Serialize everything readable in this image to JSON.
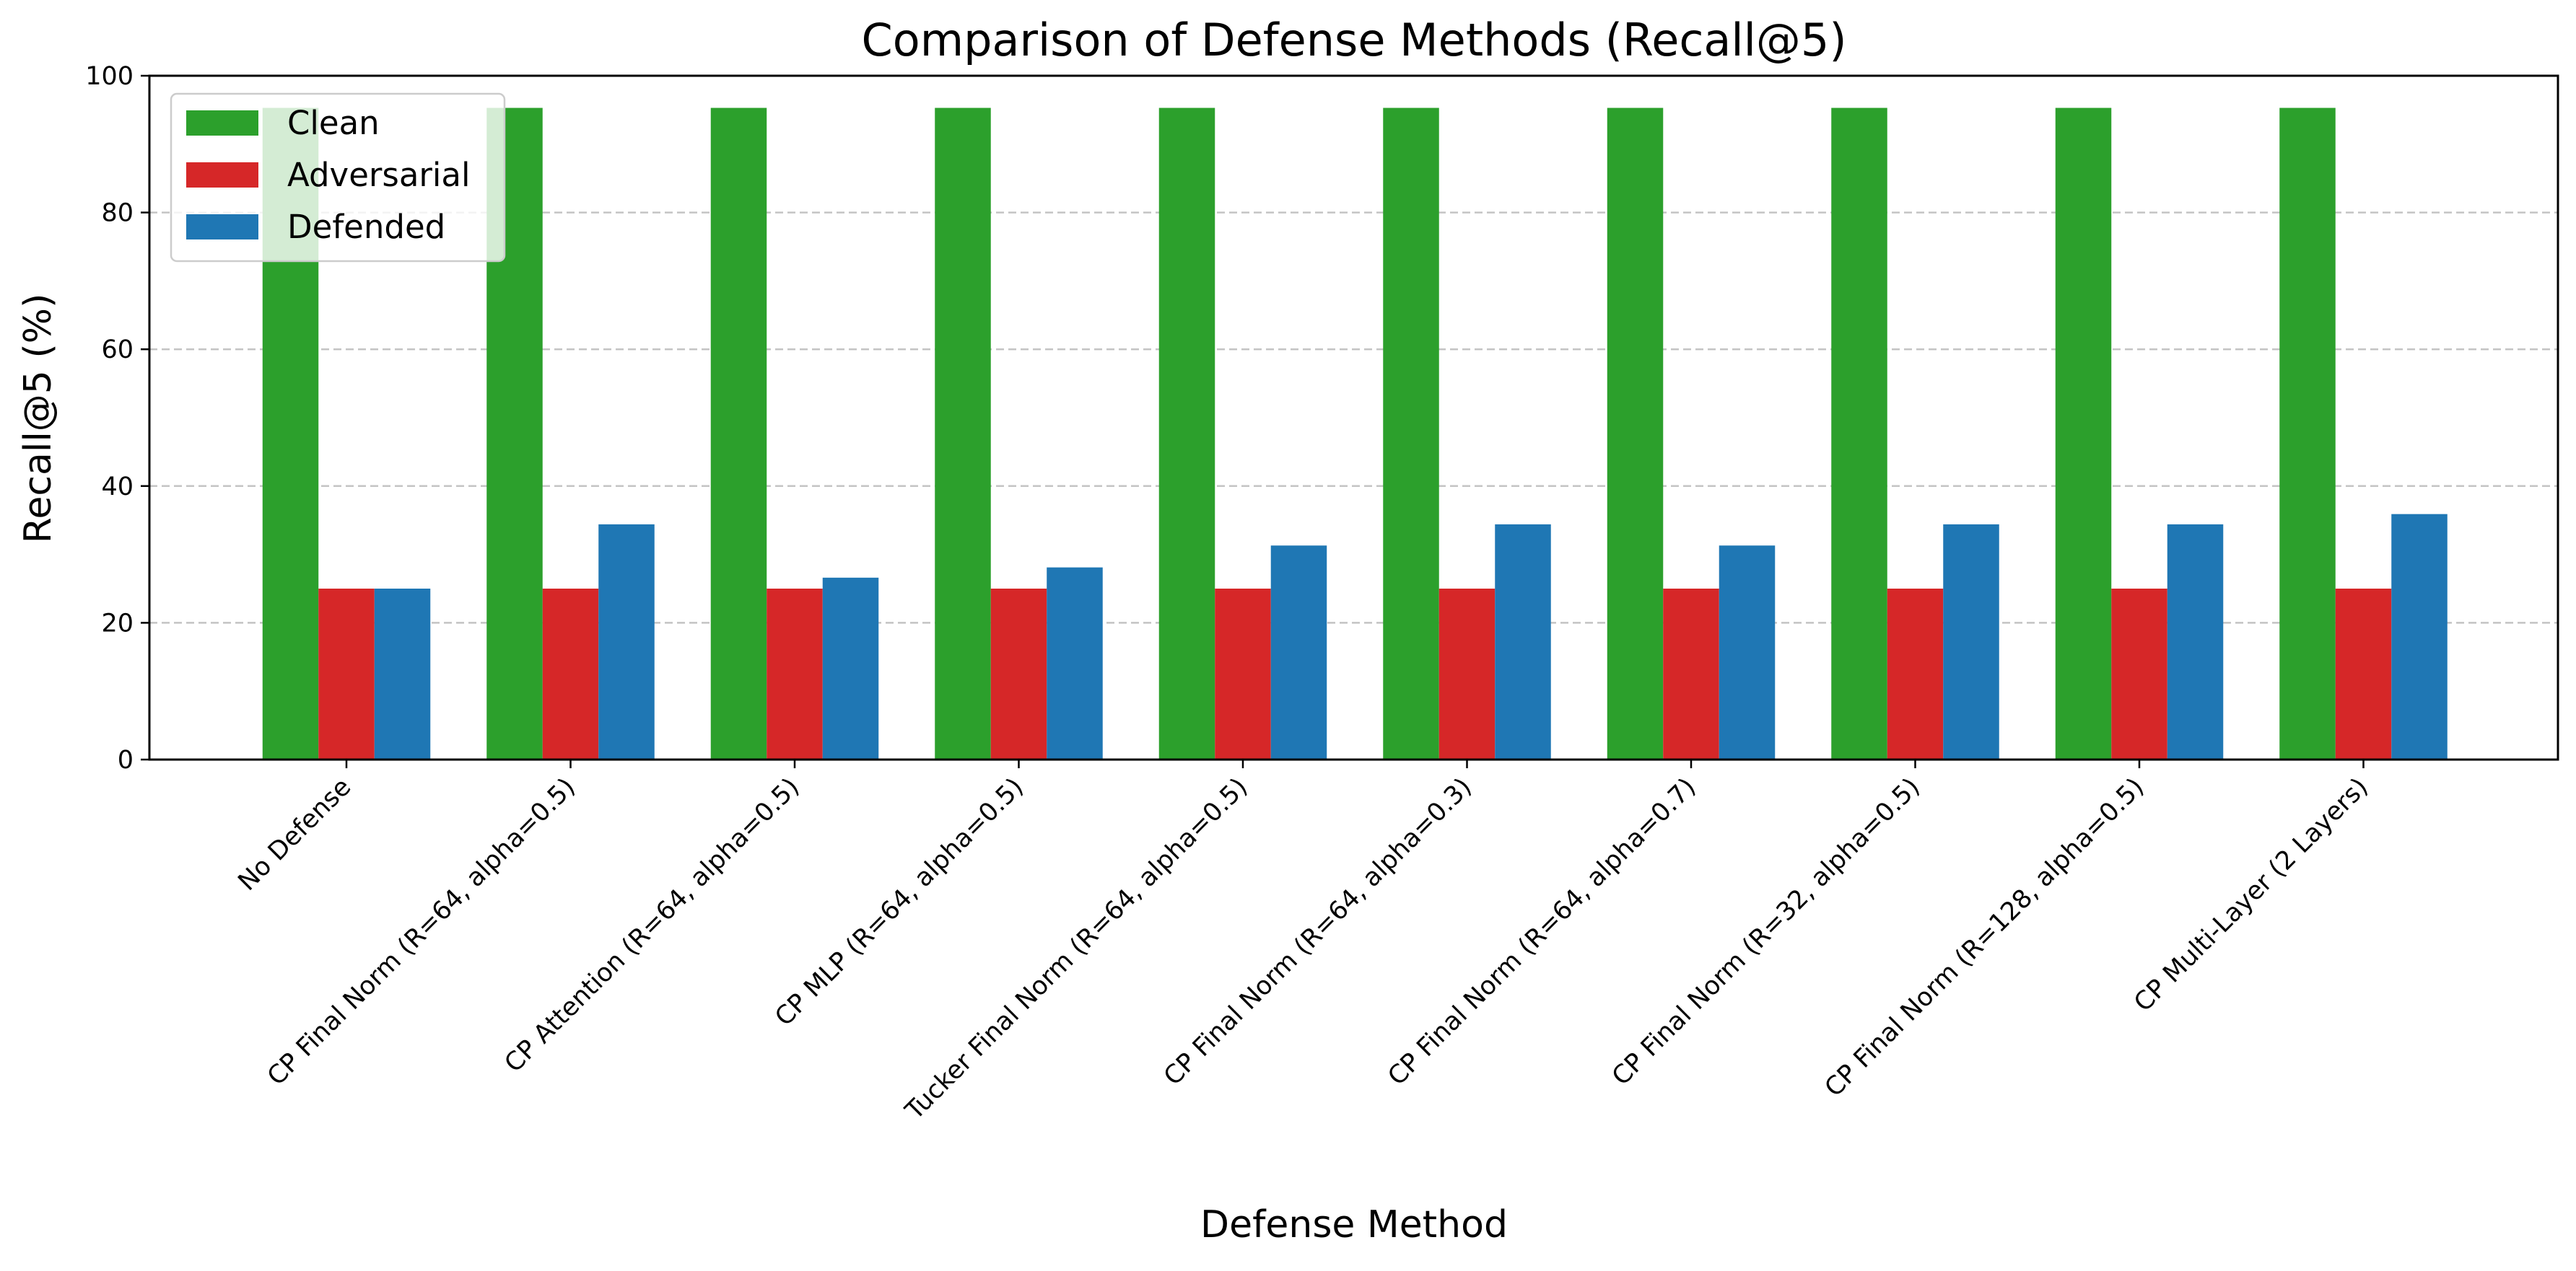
{
  "chart_data": {
    "type": "bar",
    "title": "Comparison of Defense Methods (Recall@5)",
    "xlabel": "Defense Method",
    "ylabel": "Recall@5 (%)",
    "ylim": [
      0,
      100
    ],
    "yticks": [
      0,
      20,
      40,
      60,
      80,
      100
    ],
    "grid": "y-dashed",
    "legend_position": "top-left",
    "categories": [
      "No Defense",
      "CP Final Norm (R=64, alpha=0.5)",
      "CP Attention (R=64, alpha=0.5)",
      "CP MLP (R=64, alpha=0.5)",
      "Tucker Final Norm (R=64, alpha=0.5)",
      "CP Final Norm (R=64, alpha=0.3)",
      "CP Final Norm (R=64, alpha=0.7)",
      "CP Final Norm (R=32, alpha=0.5)",
      "CP Final Norm (R=128, alpha=0.5)",
      "CP Multi-Layer (2 Layers)"
    ],
    "series": [
      {
        "name": "Clean",
        "color": "#2ca02c",
        "values": [
          95.3,
          95.3,
          95.3,
          95.3,
          95.3,
          95.3,
          95.3,
          95.3,
          95.3,
          95.3
        ]
      },
      {
        "name": "Adversarial",
        "color": "#d62728",
        "values": [
          25.0,
          25.0,
          25.0,
          25.0,
          25.0,
          25.0,
          25.0,
          25.0,
          25.0,
          25.0
        ]
      },
      {
        "name": "Defended",
        "color": "#1f77b4",
        "values": [
          25.0,
          34.4,
          26.6,
          28.1,
          31.3,
          34.4,
          31.3,
          34.4,
          34.4,
          35.9
        ]
      }
    ]
  }
}
